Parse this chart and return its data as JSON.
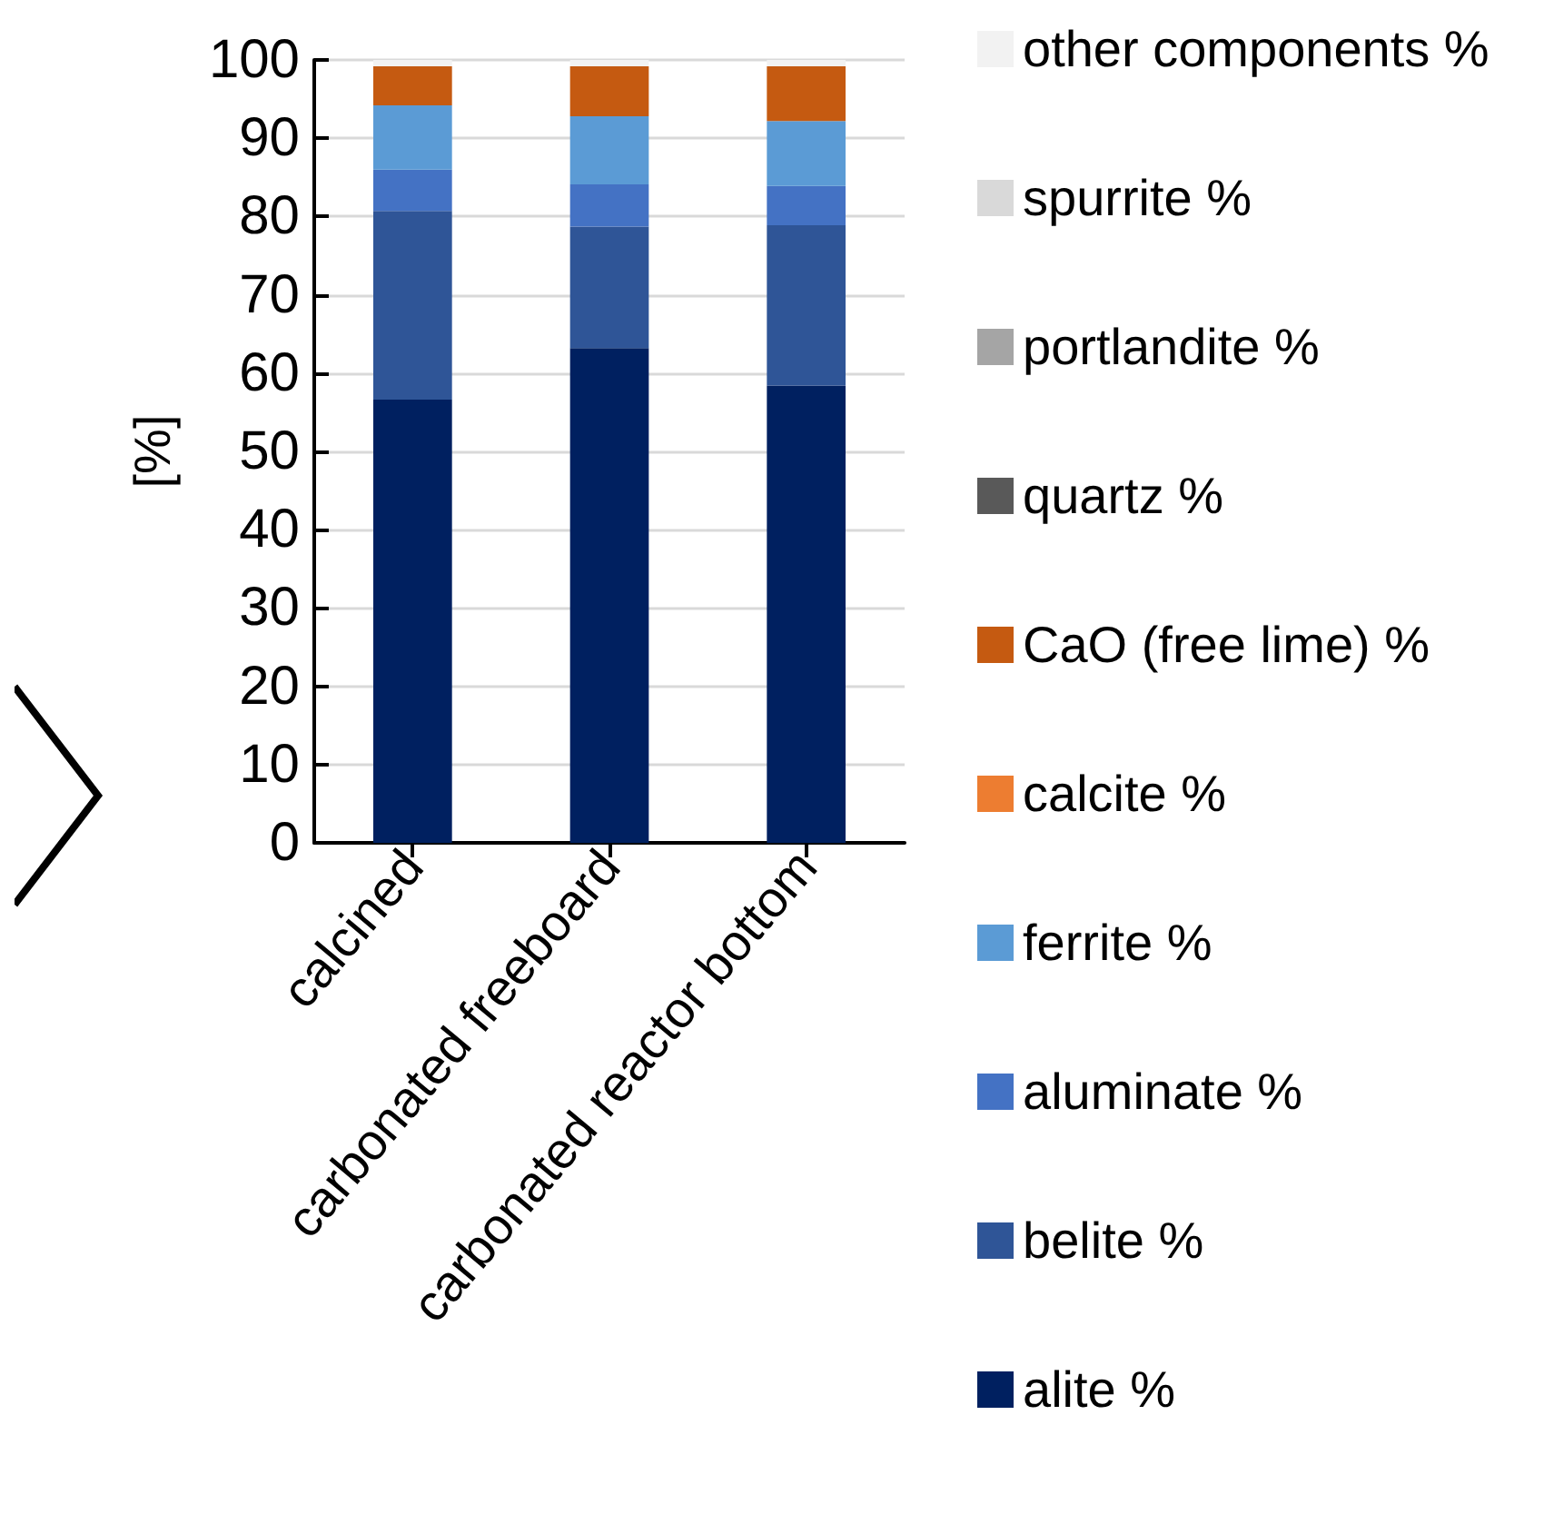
{
  "chart_data": {
    "type": "bar",
    "stacked": true,
    "ylabel": "[%]",
    "categories": [
      "calcined",
      "carbonated freeboard",
      "carbonated reactor bottom"
    ],
    "series": [
      {
        "name": "alite %",
        "color": "#002060",
        "values": [
          56.6,
          63.2,
          58.4
        ]
      },
      {
        "name": "belite %",
        "color": "#2f5597",
        "values": [
          24.1,
          15.5,
          20.5
        ]
      },
      {
        "name": "aluminate %",
        "color": "#4472c4",
        "values": [
          5.3,
          5.4,
          5.0
        ]
      },
      {
        "name": "ferrite %",
        "color": "#5b9bd5",
        "values": [
          8.2,
          8.7,
          8.3
        ]
      },
      {
        "name": "calcite %",
        "color": "#ed7d31",
        "values": [
          0,
          0,
          0
        ]
      },
      {
        "name": "CaO (free lime) %",
        "color": "#c55a11",
        "values": [
          5.0,
          6.4,
          7.0
        ]
      },
      {
        "name": "quartz %",
        "color": "#595959",
        "values": [
          0,
          0,
          0
        ]
      },
      {
        "name": "portlandite %",
        "color": "#a5a5a5",
        "values": [
          0,
          0,
          0
        ]
      },
      {
        "name": "spurrite %",
        "color": "#d9d9d9",
        "values": [
          0,
          0,
          0
        ]
      },
      {
        "name": "other components %",
        "color": "#f2f2f2",
        "values": [
          0.8,
          0.8,
          0.8
        ]
      }
    ],
    "ylim": [
      0,
      100
    ],
    "yticks": [
      0,
      10,
      20,
      30,
      40,
      50,
      60,
      70,
      80,
      90,
      100
    ],
    "grid": "y",
    "legend": "right"
  }
}
